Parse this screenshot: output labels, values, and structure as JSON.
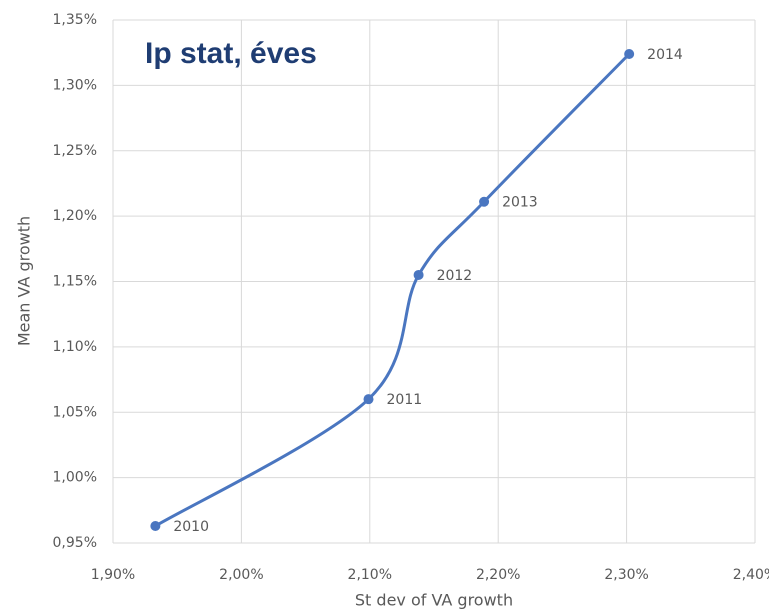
{
  "chart_data": {
    "type": "scatter",
    "title": "Ip stat, éves",
    "x_label": "St dev of VA growth",
    "y_label": "Mean VA growth",
    "labels": [
      "2010",
      "2011",
      "2012",
      "2013",
      "2014"
    ],
    "x": [
      1.933,
      2.099,
      2.138,
      2.189,
      2.302
    ],
    "values": [
      0.963,
      1.06,
      1.155,
      1.211,
      1.324
    ],
    "color": "#4a76c0",
    "smooth": true,
    "grid": true,
    "xlim": [
      1.9,
      2.4
    ],
    "xticks": [
      {
        "value": 1.9,
        "label": "1,90%"
      },
      {
        "value": 2.0,
        "label": "2,00%"
      },
      {
        "value": 2.1,
        "label": "2,10%"
      },
      {
        "value": 2.2,
        "label": "2,20%"
      },
      {
        "value": 2.3,
        "label": "2,30%"
      },
      {
        "value": 2.4,
        "label": "2,40%"
      }
    ],
    "ylim": [
      0.95,
      1.35
    ],
    "yticks": [
      {
        "value": 0.95,
        "label": "0,95%"
      },
      {
        "value": 1.0,
        "label": "1,00%"
      },
      {
        "value": 1.05,
        "label": "1,05%"
      },
      {
        "value": 1.1,
        "label": "1,10%"
      },
      {
        "value": 1.15,
        "label": "1,15%"
      },
      {
        "value": 1.2,
        "label": "1,20%"
      },
      {
        "value": 1.25,
        "label": "1,25%"
      },
      {
        "value": 1.3,
        "label": "1,30%"
      },
      {
        "value": 1.35,
        "label": "1,35%"
      }
    ]
  }
}
